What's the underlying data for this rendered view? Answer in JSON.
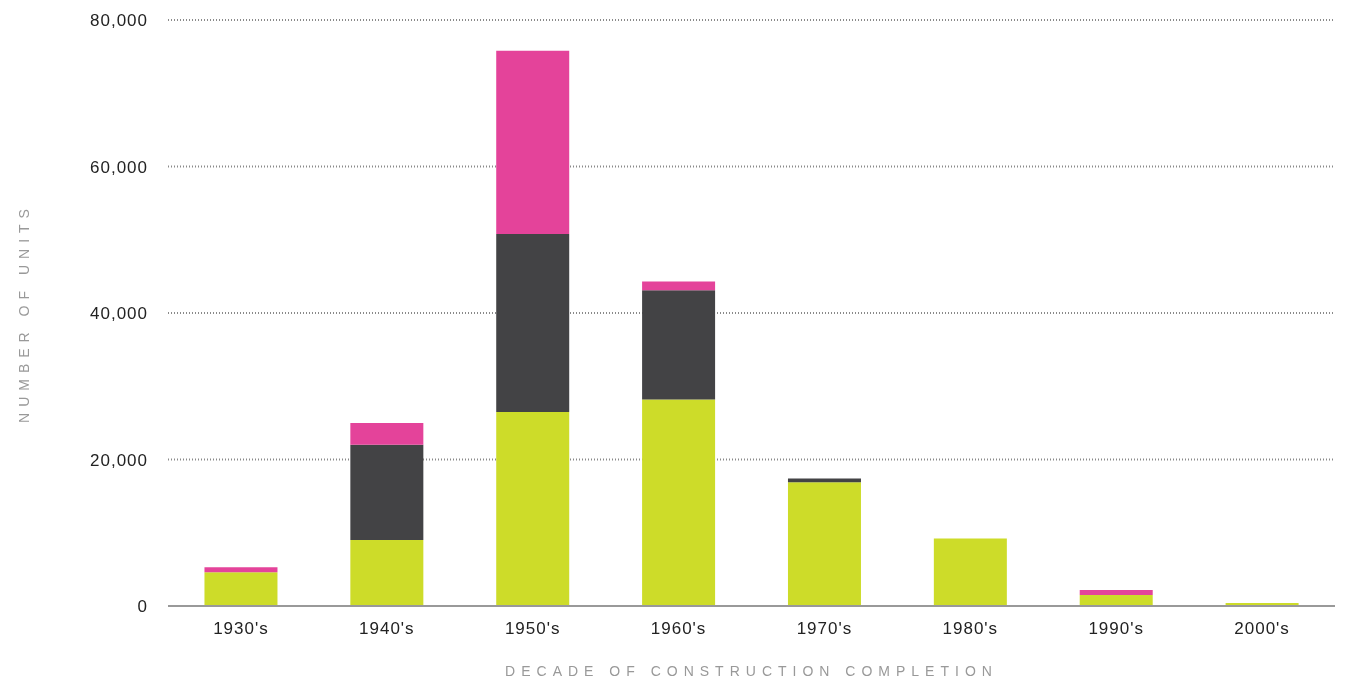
{
  "chart_data": {
    "type": "bar",
    "stacked": true,
    "xlabel": "DECADE OF CONSTRUCTION COMPLETION",
    "ylabel": "NUMBER OF UNITS",
    "categories": [
      "1930's",
      "1940's",
      "1950's",
      "1960's",
      "1970's",
      "1980's",
      "1990's",
      "2000's"
    ],
    "series": [
      {
        "color": "#cddc29",
        "values": [
          4600,
          9000,
          26500,
          28200,
          16900,
          9200,
          1500,
          400
        ]
      },
      {
        "color": "#434345",
        "values": [
          0,
          13000,
          24300,
          14900,
          500,
          0,
          0,
          0
        ]
      },
      {
        "color": "#e4439a",
        "values": [
          700,
          3000,
          25000,
          1200,
          0,
          0,
          700,
          0
        ]
      }
    ],
    "ylim": [
      0,
      80000
    ],
    "yticks": [
      0,
      {
        "value": 20000,
        "label": "20,000"
      },
      {
        "value": 40000,
        "label": "40,000"
      },
      {
        "value": 60000,
        "label": "60,000"
      },
      {
        "value": 80000,
        "label": "80,000"
      }
    ],
    "grid": "y",
    "legend": false
  }
}
